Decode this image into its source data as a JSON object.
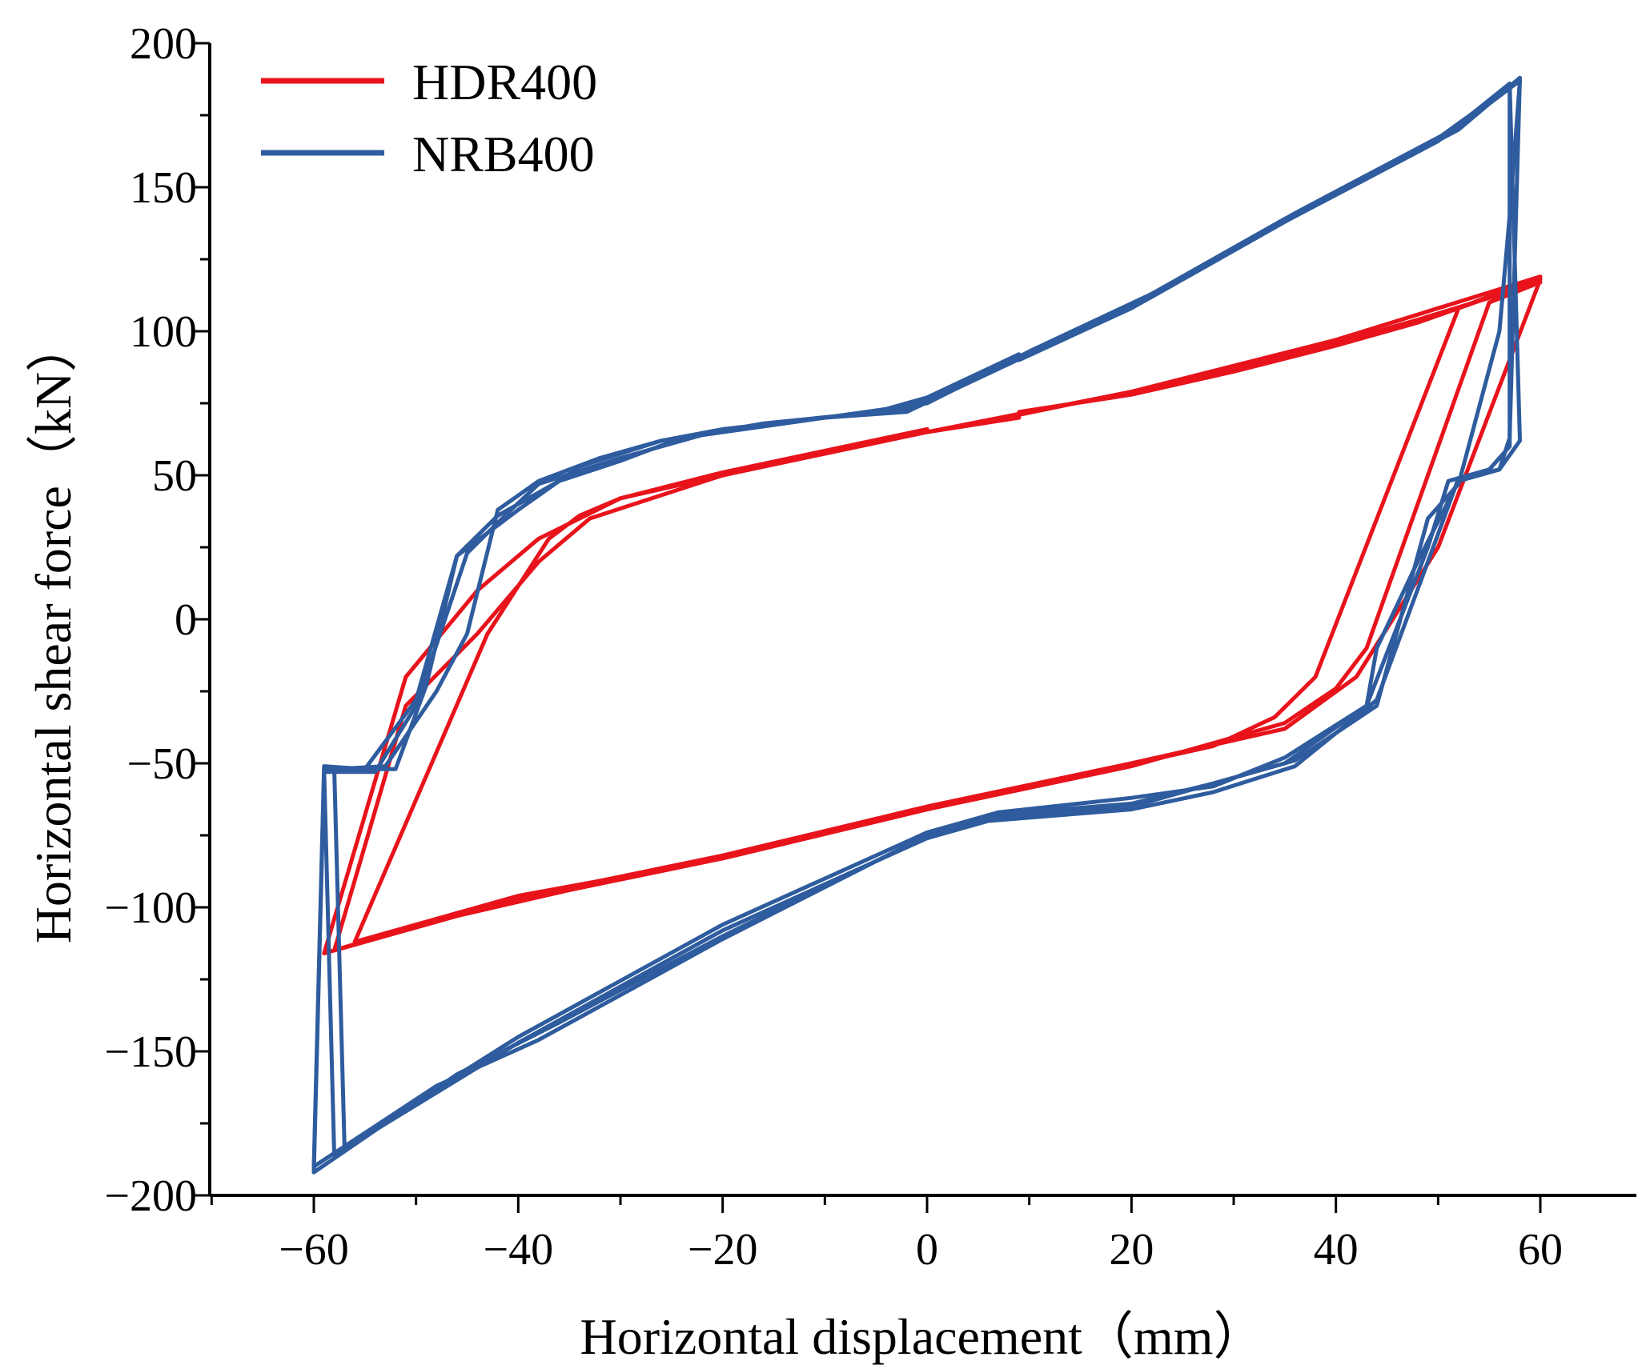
{
  "chart_data": {
    "type": "line",
    "title": "",
    "xlabel": "Horizontal displacement（mm）",
    "ylabel": "Horizontal shear force（kN）",
    "xlim": [
      -70,
      70
    ],
    "ylim": [
      -200,
      200
    ],
    "xticks": [
      -60,
      -40,
      -20,
      0,
      20,
      40,
      60
    ],
    "yticks": [
      -200,
      -150,
      -100,
      -50,
      0,
      50,
      100,
      150,
      200
    ],
    "xtick_labels": [
      "−60",
      "−40",
      "−20",
      "0",
      "20",
      "40",
      "60"
    ],
    "ytick_labels": [
      "−200",
      "−150",
      "−100",
      "−50",
      "0",
      "50",
      "100",
      "150",
      "200"
    ],
    "grid": false,
    "legend_position": "top-left",
    "series": [
      {
        "name": "HDR400",
        "color": "#e8131b",
        "cycles": [
          [
            [
              9,
              72
            ],
            [
              20,
              78
            ],
            [
              30,
              86
            ],
            [
              40,
              95
            ],
            [
              48,
              103
            ],
            [
              60,
              118
            ],
            [
              50,
              25
            ],
            [
              42,
              -20
            ],
            [
              35,
              -38
            ],
            [
              20,
              -50
            ],
            [
              0,
              -65
            ],
            [
              -20,
              -82
            ],
            [
              -35,
              -93
            ],
            [
              -46,
              -102
            ],
            [
              -59,
              -116
            ],
            [
              -51,
              -20
            ],
            [
              -44,
              10
            ],
            [
              -38,
              28
            ],
            [
              -30,
              42
            ],
            [
              -20,
              50
            ],
            [
              0,
              65
            ],
            [
              9,
              70
            ]
          ],
          [
            [
              9,
              71
            ],
            [
              20,
              79
            ],
            [
              30,
              87
            ],
            [
              40,
              96
            ],
            [
              48,
              104
            ],
            [
              60,
              117
            ],
            [
              55,
              110
            ],
            [
              43,
              -10
            ],
            [
              40,
              -24
            ],
            [
              35,
              -36
            ],
            [
              20,
              -51
            ],
            [
              0,
              -66
            ],
            [
              -20,
              -83
            ],
            [
              -35,
              -94
            ],
            [
              -46,
              -103
            ],
            [
              -58,
              -115
            ],
            [
              -51,
              -30
            ],
            [
              -44,
              -5
            ],
            [
              -38,
              20
            ],
            [
              -33,
              35
            ],
            [
              -20,
              50
            ],
            [
              0,
              66
            ]
          ],
          [
            [
              0,
              65
            ],
            [
              20,
              79
            ],
            [
              40,
              97
            ],
            [
              60,
              119
            ],
            [
              52,
              108
            ],
            [
              38,
              -20
            ],
            [
              34,
              -34
            ],
            [
              28,
              -44
            ],
            [
              0,
              -66
            ],
            [
              -20,
              -83
            ],
            [
              -40,
              -96
            ],
            [
              -56,
              -112
            ],
            [
              -43,
              -5
            ],
            [
              -37,
              28
            ],
            [
              -34,
              36
            ],
            [
              -30,
              42
            ],
            [
              -20,
              51
            ],
            [
              0,
              66
            ]
          ]
        ]
      },
      {
        "name": "NRB400",
        "color": "#2e5c9e",
        "cycles": [
          [
            [
              9,
              90
            ],
            [
              20,
              108
            ],
            [
              35,
              138
            ],
            [
              50,
              166
            ],
            [
              57,
              186
            ],
            [
              58,
              62
            ],
            [
              56,
              52
            ],
            [
              52,
              48
            ],
            [
              48,
              20
            ],
            [
              44,
              -10
            ],
            [
              43,
              -30
            ],
            [
              35,
              -48
            ],
            [
              28,
              -58
            ],
            [
              20,
              -62
            ],
            [
              7,
              -67
            ],
            [
              0,
              -74
            ],
            [
              -20,
              -106
            ],
            [
              -40,
              -145
            ],
            [
              -57,
              -183
            ],
            [
              -58,
              -52
            ],
            [
              -53,
              -51
            ],
            [
              -48,
              -25
            ],
            [
              -45,
              -5
            ],
            [
              -42,
              38
            ],
            [
              -38,
              48
            ],
            [
              -32,
              56
            ],
            [
              -26,
              62
            ],
            [
              -20,
              66
            ],
            [
              -5,
              72
            ],
            [
              0,
              77
            ],
            [
              9,
              92
            ]
          ],
          [
            [
              -2,
              73
            ],
            [
              9,
              91
            ],
            [
              20,
              109
            ],
            [
              35,
              139
            ],
            [
              50,
              167
            ],
            [
              57,
              185
            ],
            [
              57,
              60
            ],
            [
              55,
              52
            ],
            [
              51,
              48
            ],
            [
              49,
              25
            ],
            [
              43,
              -30
            ],
            [
              35,
              -50
            ],
            [
              20,
              -65
            ],
            [
              6,
              -69
            ],
            [
              0,
              -76
            ],
            [
              -20,
              -108
            ],
            [
              -40,
              -147
            ],
            [
              -58,
              -186
            ],
            [
              -59,
              -52
            ],
            [
              -52,
              -52
            ],
            [
              -49,
              -23
            ],
            [
              -46,
              22
            ],
            [
              -40,
              38
            ],
            [
              -36,
              48
            ],
            [
              -30,
              55
            ],
            [
              -24,
              63
            ],
            [
              -16,
              68
            ],
            [
              -2,
              73
            ]
          ],
          [
            [
              -2,
              72
            ],
            [
              10,
              92
            ],
            [
              22,
              112
            ],
            [
              36,
              140
            ],
            [
              52,
              170
            ],
            [
              58,
              188
            ],
            [
              57,
              63
            ],
            [
              56,
              52
            ],
            [
              52,
              49
            ],
            [
              49,
              20
            ],
            [
              44,
              -28
            ],
            [
              36,
              -51
            ],
            [
              28,
              -60
            ],
            [
              20,
              -66
            ],
            [
              6,
              -70
            ],
            [
              -1,
              -77
            ],
            [
              -20,
              -110
            ],
            [
              -36,
              -140
            ],
            [
              -46,
              -158
            ],
            [
              -60,
              -192
            ],
            [
              -59,
              -53
            ],
            [
              -54,
              -53
            ],
            [
              -50,
              -30
            ],
            [
              -45,
              23
            ],
            [
              -41,
              37
            ],
            [
              -38,
              47
            ],
            [
              -30,
              56
            ],
            [
              -22,
              64
            ],
            [
              -10,
              70
            ],
            [
              -2,
              72
            ]
          ],
          [
            [
              0,
              75
            ],
            [
              10,
              93
            ],
            [
              22,
              113
            ],
            [
              36,
              141
            ],
            [
              52,
              171
            ],
            [
              58,
              187
            ],
            [
              57,
              140
            ],
            [
              56,
              100
            ],
            [
              52,
              47
            ],
            [
              49,
              35
            ],
            [
              44,
              -30
            ],
            [
              36,
              -49
            ],
            [
              28,
              -57
            ],
            [
              20,
              -64
            ],
            [
              6,
              -68
            ],
            [
              0,
              -75
            ],
            [
              -20,
              -111
            ],
            [
              -38,
              -146
            ],
            [
              -48,
              -162
            ],
            [
              -60,
              -190
            ],
            [
              -59,
              -51
            ],
            [
              -55,
              -52
            ],
            [
              -50,
              -28
            ],
            [
              -46,
              22
            ],
            [
              -42,
              36
            ],
            [
              -36,
              48
            ],
            [
              -34,
              53
            ],
            [
              -26,
              62
            ],
            [
              -12,
              69
            ],
            [
              0,
              75
            ]
          ]
        ]
      }
    ]
  }
}
